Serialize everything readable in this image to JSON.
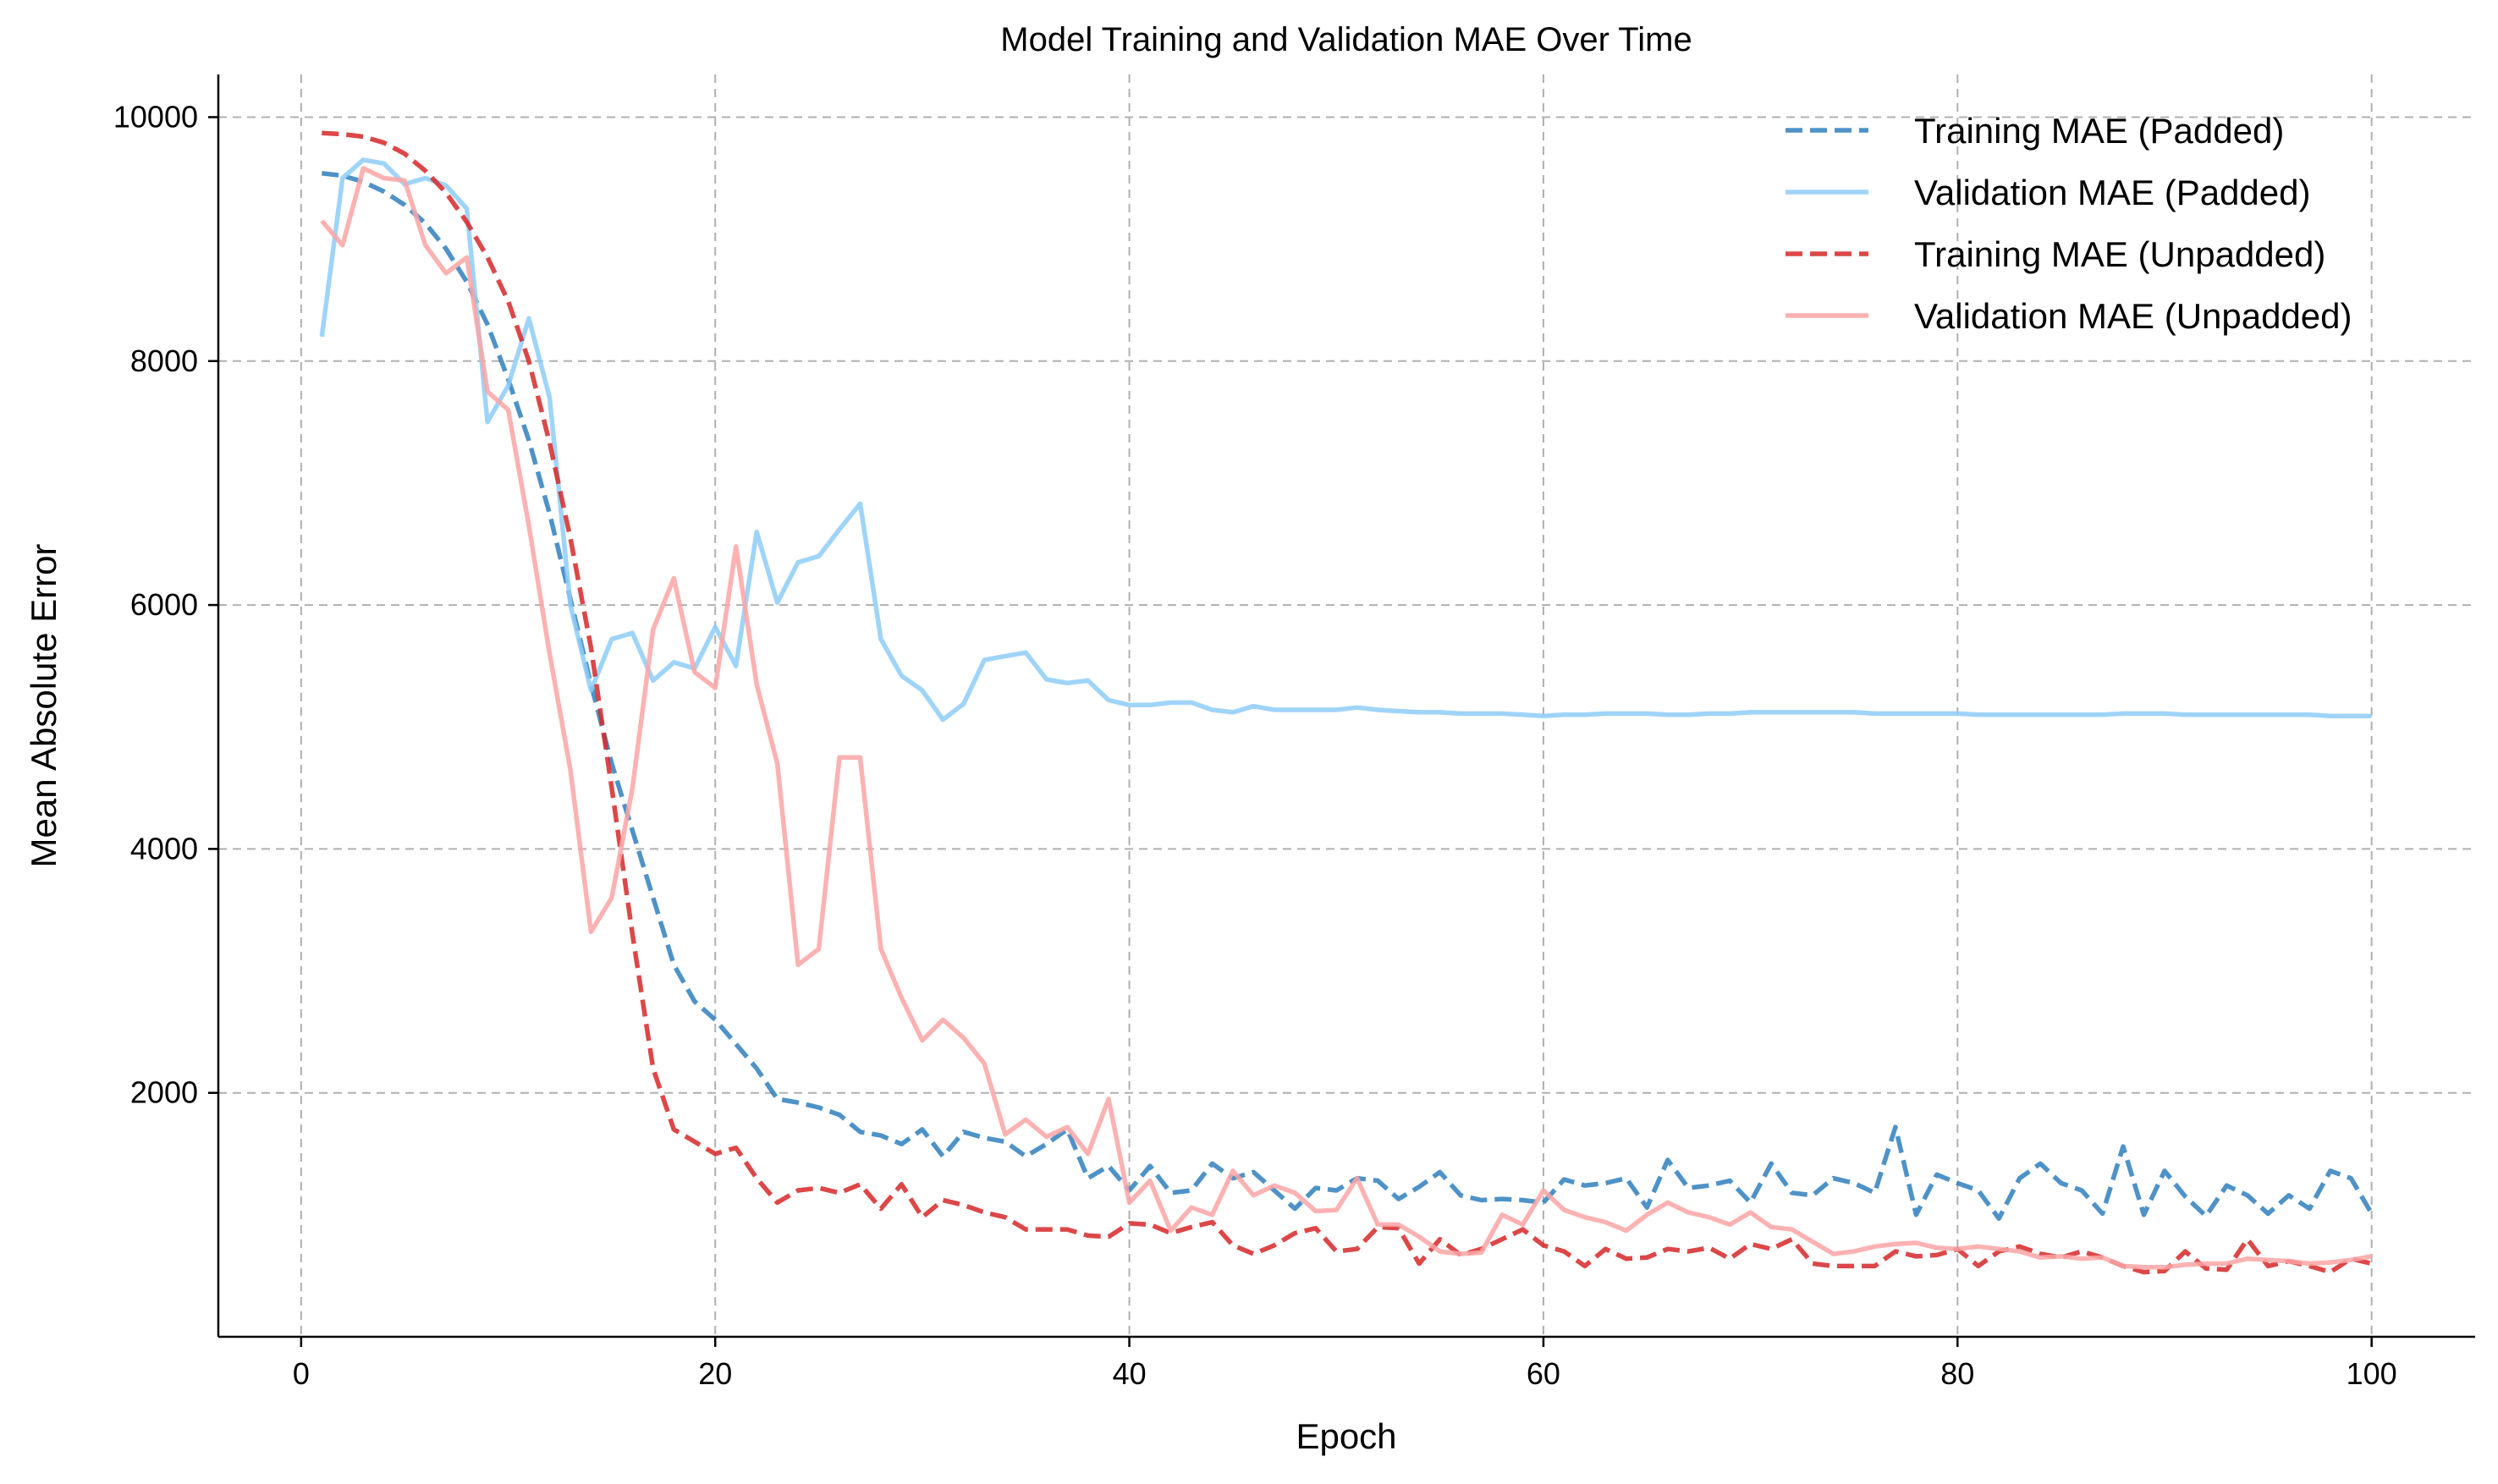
{
  "chart_data": {
    "type": "line",
    "title": "Model Training and Validation MAE Over Time",
    "xlabel": "Epoch",
    "ylabel": "Mean Absolute Error",
    "xlim": [
      -4,
      105
    ],
    "ylim": [
      0,
      10350
    ],
    "xticks": [
      0,
      20,
      40,
      60,
      80,
      100
    ],
    "yticks": [
      2000,
      4000,
      6000,
      8000,
      10000
    ],
    "grid": true,
    "legend_position": "top-right",
    "x": [
      1,
      2,
      3,
      4,
      5,
      6,
      7,
      8,
      9,
      10,
      11,
      12,
      13,
      14,
      15,
      16,
      17,
      18,
      19,
      20,
      21,
      22,
      23,
      24,
      25,
      26,
      27,
      28,
      29,
      30,
      31,
      32,
      33,
      34,
      35,
      36,
      37,
      38,
      39,
      40,
      41,
      42,
      43,
      44,
      45,
      46,
      47,
      48,
      49,
      50,
      51,
      52,
      53,
      54,
      55,
      56,
      57,
      58,
      59,
      60,
      61,
      62,
      63,
      64,
      65,
      66,
      67,
      68,
      69,
      70,
      71,
      72,
      73,
      74,
      75,
      76,
      77,
      78,
      79,
      80,
      81,
      82,
      83,
      84,
      85,
      86,
      87,
      88,
      89,
      90,
      91,
      92,
      93,
      94,
      95,
      96,
      97,
      98,
      99,
      100
    ],
    "series": [
      {
        "name": "Training MAE (Padded)",
        "color": "#2f7fbd",
        "dash": true,
        "values": [
          9540,
          9520,
          9470,
          9390,
          9280,
          9130,
          8920,
          8650,
          8300,
          7850,
          7350,
          6750,
          6050,
          5350,
          4700,
          4150,
          3600,
          3050,
          2750,
          2600,
          2400,
          2200,
          1950,
          1920,
          1880,
          1820,
          1680,
          1650,
          1580,
          1700,
          1480,
          1680,
          1630,
          1600,
          1480,
          1580,
          1700,
          1300,
          1400,
          1200,
          1400,
          1180,
          1200,
          1420,
          1300,
          1350,
          1200,
          1050,
          1220,
          1200,
          1300,
          1280,
          1130,
          1230,
          1350,
          1160,
          1120,
          1130,
          1120,
          1100,
          1290,
          1240,
          1260,
          1300,
          1060,
          1450,
          1220,
          1240,
          1280,
          1100,
          1420,
          1180,
          1160,
          1300,
          1260,
          1180,
          1720,
          1000,
          1330,
          1260,
          1200,
          970,
          1300,
          1420,
          1260,
          1200,
          1010,
          1560,
          1000,
          1360,
          1150,
          990,
          1240,
          1160,
          1010,
          1160,
          1050,
          1360,
          1300,
          1010
        ]
      },
      {
        "name": "Validation MAE (Padded)",
        "color": "#8ecdf8",
        "dash": false,
        "values": [
          8200,
          9500,
          9650,
          9620,
          9450,
          9500,
          9440,
          9250,
          7500,
          7800,
          8350,
          7700,
          6000,
          5300,
          5720,
          5770,
          5380,
          5530,
          5480,
          5820,
          5500,
          6600,
          6020,
          6350,
          6400,
          6620,
          6830,
          5720,
          5420,
          5300,
          5060,
          5190,
          5550,
          5580,
          5610,
          5390,
          5360,
          5380,
          5220,
          5180,
          5180,
          5200,
          5200,
          5140,
          5120,
          5170,
          5140,
          5140,
          5140,
          5140,
          5160,
          5140,
          5130,
          5120,
          5120,
          5110,
          5110,
          5110,
          5100,
          5090,
          5100,
          5100,
          5110,
          5110,
          5110,
          5100,
          5100,
          5110,
          5110,
          5120,
          5120,
          5120,
          5120,
          5120,
          5120,
          5110,
          5110,
          5110,
          5110,
          5110,
          5100,
          5100,
          5100,
          5100,
          5100,
          5100,
          5100,
          5110,
          5110,
          5110,
          5100,
          5100,
          5100,
          5100,
          5100,
          5100,
          5100,
          5090,
          5090,
          5090
        ]
      },
      {
        "name": "Training MAE (Unpadded)",
        "color": "#d62728",
        "dash": true,
        "values": [
          9870,
          9860,
          9840,
          9790,
          9700,
          9560,
          9380,
          9140,
          8850,
          8490,
          8000,
          7330,
          6550,
          5650,
          4500,
          3300,
          2200,
          1700,
          1600,
          1500,
          1550,
          1300,
          1100,
          1200,
          1220,
          1180,
          1250,
          1050,
          1250,
          980,
          1120,
          1080,
          1020,
          980,
          880,
          880,
          880,
          830,
          820,
          930,
          920,
          850,
          900,
          940,
          750,
          680,
          750,
          850,
          890,
          700,
          720,
          900,
          890,
          600,
          800,
          670,
          720,
          800,
          880,
          750,
          700,
          580,
          720,
          640,
          650,
          720,
          700,
          730,
          640,
          760,
          720,
          800,
          600,
          580,
          580,
          580,
          700,
          660,
          670,
          720,
          580,
          700,
          740,
          680,
          650,
          700,
          650,
          580,
          530,
          540,
          700,
          560,
          550,
          800,
          580,
          620,
          580,
          530,
          640,
          600
        ]
      },
      {
        "name": "Validation MAE (Unpadded)",
        "color": "#fba4a4",
        "dash": false,
        "values": [
          9150,
          8950,
          9580,
          9500,
          9480,
          8950,
          8720,
          8850,
          7750,
          7600,
          6650,
          5600,
          4650,
          3320,
          3600,
          4500,
          5800,
          6220,
          5450,
          5320,
          6480,
          5350,
          4700,
          3050,
          3180,
          4750,
          4750,
          3180,
          2780,
          2430,
          2600,
          2450,
          2240,
          1660,
          1780,
          1640,
          1720,
          1500,
          1950,
          1100,
          1280,
          870,
          1060,
          1000,
          1360,
          1160,
          1240,
          1180,
          1030,
          1040,
          1300,
          920,
          920,
          820,
          700,
          680,
          690,
          1000,
          920,
          1200,
          1040,
          980,
          940,
          870,
          1000,
          1100,
          1020,
          980,
          920,
          1020,
          900,
          880,
          780,
          680,
          700,
          740,
          760,
          770,
          730,
          720,
          740,
          720,
          700,
          650,
          660,
          640,
          650,
          580,
          570,
          570,
          590,
          600,
          600,
          640,
          630,
          620,
          600,
          610,
          630,
          660
        ]
      }
    ]
  }
}
